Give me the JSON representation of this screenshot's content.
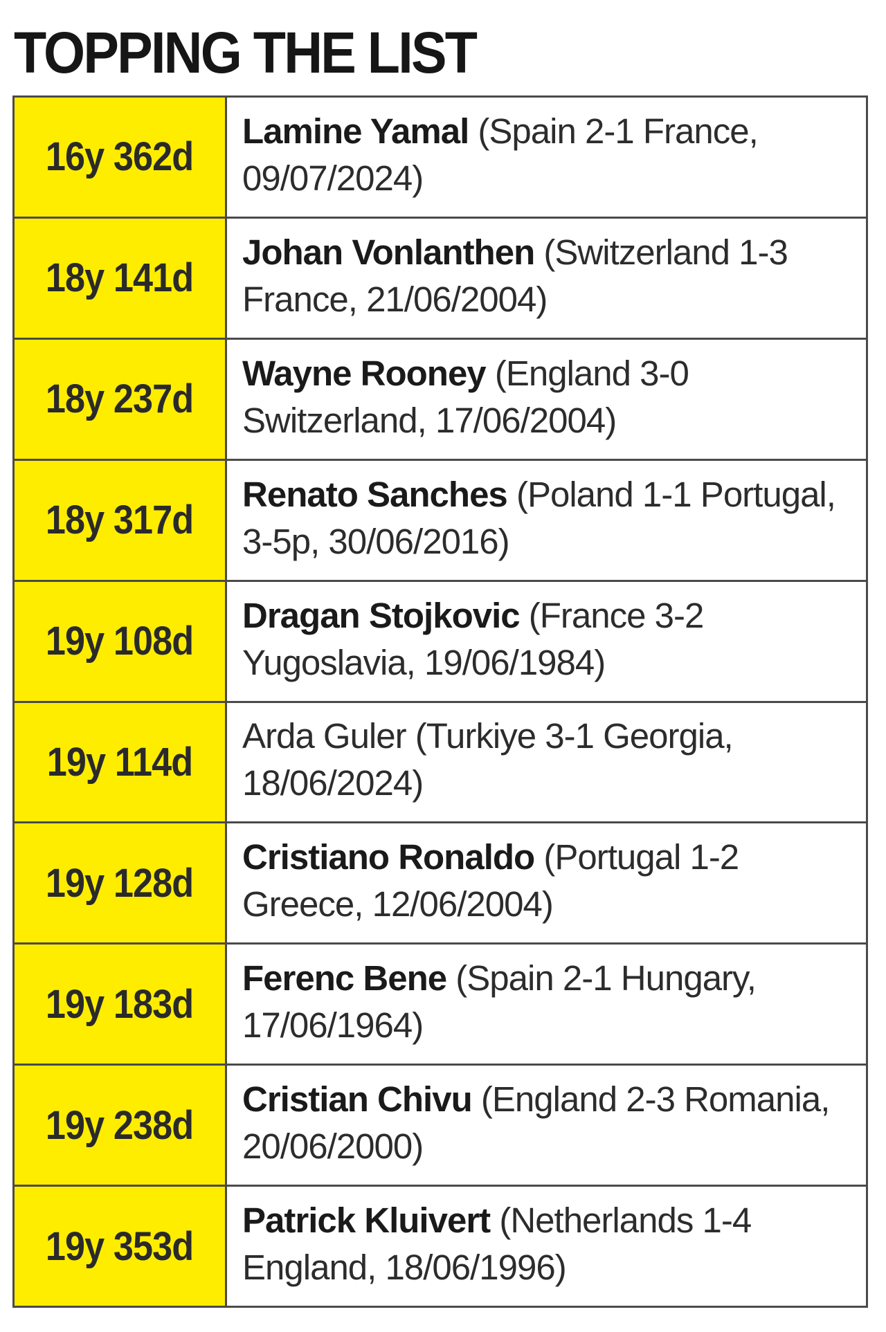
{
  "title": "TOPPING THE LIST",
  "rows": [
    {
      "age": "16y 362d",
      "name": "Lamine Yamal",
      "detail": " (Spain 2-1 France, 09/07/2024)",
      "bold": true
    },
    {
      "age": "18y 141d",
      "name": "Johan Vonlanthen",
      "detail": " (Switzerland 1-3 France, 21/06/2004)",
      "bold": true
    },
    {
      "age": "18y 237d",
      "name": "Wayne Rooney",
      "detail": " (England 3-0 Switzerland, 17/06/2004)",
      "bold": true
    },
    {
      "age": "18y 317d",
      "name": "Renato Sanches",
      "detail": " (Poland 1-1 Portugal, 3-5p, 30/06/2016)",
      "bold": true
    },
    {
      "age": "19y 108d",
      "name": "Dragan Stojkovic",
      "detail": " (France 3-2 Yugoslavia, 19/06/1984)",
      "bold": true
    },
    {
      "age": "19y 114d",
      "name": "Arda Guler",
      "detail": " (Turkiye 3-1 Georgia, 18/06/2024)",
      "bold": false
    },
    {
      "age": "19y 128d",
      "name": "Cristiano Ronaldo",
      "detail": " (Portugal 1-2 Greece, 12/06/2004)",
      "bold": true
    },
    {
      "age": "19y 183d",
      "name": "Ferenc Bene",
      "detail": " (Spain 2-1 Hungary, 17/06/1964)",
      "bold": true
    },
    {
      "age": "19y 238d",
      "name": "Cristian Chivu",
      "detail": " (England 2-3 Romania, 20/06/2000)",
      "bold": true
    },
    {
      "age": "19y 353d",
      "name": "Patrick Kluivert",
      "detail": " (Netherlands 1-4 England, 18/06/1996)",
      "bold": true
    }
  ],
  "colors": {
    "age_background": "#ffed00",
    "border": "#4a4a4a"
  }
}
